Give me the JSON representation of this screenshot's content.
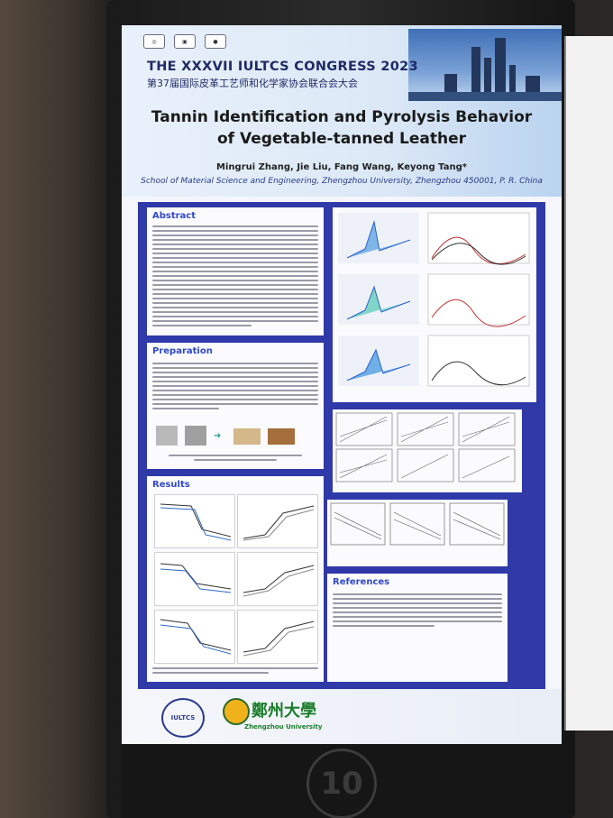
{
  "congress": {
    "title_en": "THE XXXVII IULTCS CONGRESS 2023",
    "title_cn": "第37届国际皮革工艺师和化学家协会联合会大会"
  },
  "poster": {
    "title_line1": "Tannin Identification and Pyrolysis Behavior",
    "title_line2": "of Vegetable-tanned Leather",
    "authors": "Mingrui Zhang, Jie Liu, Fang Wang, Keyong Tang*",
    "affiliation": "School of Material Science and Engineering, Zhengzhou University, Zhengzhou 450001, P. R. China"
  },
  "sections": {
    "abstract": "Abstract",
    "preparation": "Preparation",
    "results": "Results",
    "references": "References"
  },
  "footer": {
    "iultcs": "IULTCS",
    "university_cn": "鄭州大學",
    "university_en": "Zhengzhou University"
  },
  "stand_number": "10",
  "colors": {
    "poster_body": "#2f39a8",
    "section_title": "#3048c8",
    "university_green": "#1a7d2a"
  }
}
